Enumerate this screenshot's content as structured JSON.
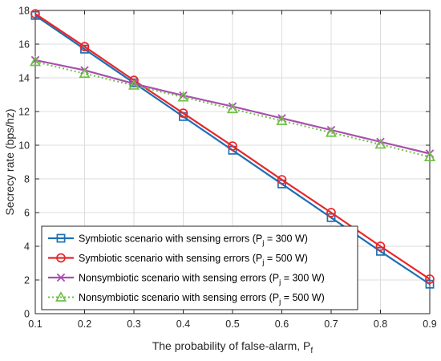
{
  "chart_data": {
    "type": "line",
    "title": "",
    "xlabel": "The probability of false-alarm, P",
    "xlabel_sub": "f",
    "ylabel": "Secrecy rate (bps/hz)",
    "xlim": [
      0.1,
      0.9
    ],
    "ylim": [
      0,
      18
    ],
    "xticks": [
      0.1,
      0.2,
      0.3,
      0.4,
      0.5,
      0.6,
      0.7,
      0.8,
      0.9
    ],
    "xtick_labels": [
      "0.1",
      "0.2",
      "0.3",
      "0.4",
      "0.5",
      "0.6",
      "0.7",
      "0.8",
      "0.9"
    ],
    "yticks": [
      0,
      2,
      4,
      6,
      8,
      10,
      12,
      14,
      16,
      18
    ],
    "ytick_labels": [
      "0",
      "2",
      "4",
      "6",
      "8",
      "10",
      "12",
      "14",
      "16",
      "18"
    ],
    "grid": true,
    "legend_position": "bottom-left",
    "x": [
      0.1,
      0.2,
      0.3,
      0.4,
      0.5,
      0.6,
      0.7,
      0.8,
      0.9
    ],
    "series": [
      {
        "name": "Symbiotic scenario with sensing errors (P",
        "name_sub": "j",
        "name_tail": " = 300 W)",
        "values": [
          17.7,
          15.7,
          13.7,
          11.7,
          9.7,
          7.7,
          5.7,
          3.7,
          1.75
        ],
        "color": "#1f6fb4",
        "marker": "square",
        "dash": "solid"
      },
      {
        "name": "Symbiotic scenario with sensing errors (P",
        "name_sub": "j",
        "name_tail": " = 500 W)",
        "values": [
          17.8,
          15.85,
          13.85,
          11.9,
          9.95,
          7.95,
          6.0,
          4.0,
          2.05
        ],
        "color": "#e8272b",
        "marker": "circle",
        "dash": "solid"
      },
      {
        "name": "Nonsymbiotic scenario with sensing errors (P",
        "name_sub": "j",
        "name_tail": " = 300 W)",
        "values": [
          15.05,
          14.45,
          13.65,
          12.95,
          12.3,
          11.6,
          10.9,
          10.2,
          9.5
        ],
        "color": "#a94fae",
        "marker": "x",
        "dash": "solid"
      },
      {
        "name": "Nonsymbiotic scenario with sensing errors (P",
        "name_sub": "j",
        "name_tail": " = 500 W)",
        "values": [
          14.95,
          14.25,
          13.55,
          12.85,
          12.15,
          11.45,
          10.75,
          10.05,
          9.3
        ],
        "color": "#6fbf45",
        "marker": "triangle",
        "dash": "dotted"
      }
    ]
  }
}
